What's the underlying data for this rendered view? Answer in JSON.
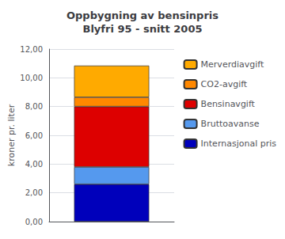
{
  "chart_data": {
    "type": "bar",
    "title": "Oppbygning av bensinpris\nBlyfri 95 - snitt 2005",
    "ylabel": "kroner pr. liter",
    "categories": [
      null
    ],
    "stacked": true,
    "series": [
      {
        "name": "Internasjonal pris",
        "color": "#0000bb",
        "values": [
          2.6
        ]
      },
      {
        "name": "Bruttoavanse",
        "color": "#5599ee",
        "values": [
          1.2
        ]
      },
      {
        "name": "Bensinavgift",
        "color": "#dd0000",
        "values": [
          4.2
        ]
      },
      {
        "name": "CO2-avgift",
        "color": "#ff8800",
        "values": [
          0.65
        ]
      },
      {
        "name": "Merverdiavgift",
        "color": "#ffaa00",
        "values": [
          2.2
        ]
      }
    ],
    "ylim": [
      0,
      12
    ],
    "yticks": [
      {
        "value": 0,
        "label": "0,00"
      },
      {
        "value": 2,
        "label": "2,00"
      },
      {
        "value": 4,
        "label": "4,00"
      },
      {
        "value": 6,
        "label": "6,00"
      },
      {
        "value": 8,
        "label": "8,00"
      },
      {
        "value": 10,
        "label": "10,00"
      },
      {
        "value": 12,
        "label": "12,00"
      }
    ],
    "grid": true,
    "legend": "right",
    "tick_labels": "y"
  }
}
